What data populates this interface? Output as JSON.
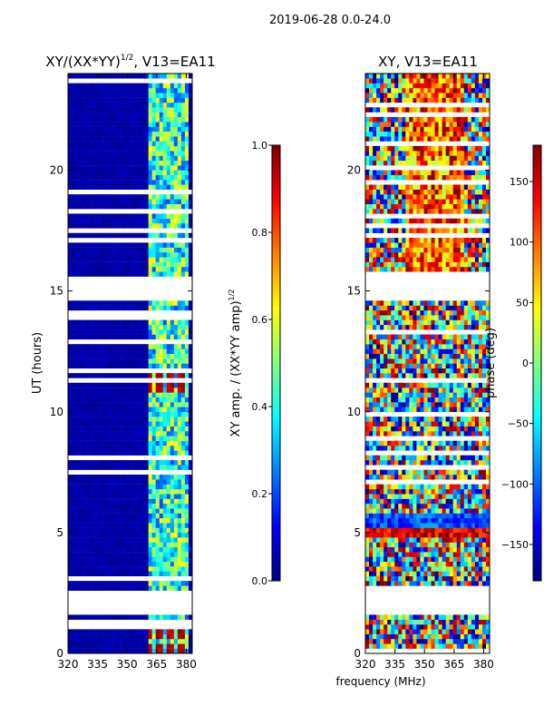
{
  "suptitle": "2019-06-28 0.0-24.0",
  "xlabel_shared": "frequency (MHz)",
  "colors": {
    "jet": [
      "#00007f",
      "#0000ff",
      "#007fff",
      "#00ffff",
      "#7fff7f",
      "#ffff00",
      "#ff7f00",
      "#ff0000",
      "#7f0000"
    ],
    "frame": "#000000",
    "background": "#ffffff"
  },
  "chart_data": [
    {
      "type": "heatmap",
      "title": "XY/(XX*YY)",
      "title_exponent": "1/2",
      "title_suffix": ", V13=EA11",
      "xlabel": "",
      "ylabel": "UT (hours)",
      "xlim": [
        320,
        383
      ],
      "ylim": [
        0,
        24
      ],
      "xticks": [
        320,
        335,
        350,
        365,
        380
      ],
      "xtick_labels": [
        "320",
        "335",
        "350",
        "365",
        "380"
      ],
      "yticks": [
        0,
        5,
        10,
        15,
        20
      ],
      "ytick_labels": [
        "0",
        "5",
        "10",
        "15",
        "20"
      ],
      "rfi_band_mhz": [
        360,
        382
      ],
      "gap_hours": [
        [
          1.6,
          2.7
        ],
        [
          14.6,
          15.6
        ]
      ],
      "hot_rows_hours": [
        0.2,
        0.8,
        1.3,
        11.0,
        11.5
      ],
      "colorbar": {
        "label": "XY amp. / (XX*YY amp)",
        "label_exponent": "1/2",
        "range": [
          0.0,
          1.0
        ],
        "ticks": [
          0.0,
          0.2,
          0.4,
          0.6,
          0.8,
          1.0
        ],
        "tick_labels": [
          "0.0",
          "0.2",
          "0.4",
          "0.6",
          "0.8",
          "1.0"
        ]
      }
    },
    {
      "type": "heatmap",
      "title": "XY, V13=EA11",
      "xlabel": "frequency (MHz)",
      "ylabel": "",
      "xlim": [
        320,
        383
      ],
      "ylim": [
        0,
        24
      ],
      "xticks": [
        320,
        335,
        350,
        365,
        380
      ],
      "xtick_labels": [
        "320",
        "335",
        "350",
        "365",
        "380"
      ],
      "yticks": [
        0,
        5,
        10,
        15,
        20
      ],
      "ytick_labels": [
        "0",
        "5",
        "10",
        "15",
        "20"
      ],
      "gap_hours": [
        [
          1.6,
          2.7
        ],
        [
          14.6,
          15.6
        ]
      ],
      "colorbar": {
        "label": "phase (deg)",
        "range": [
          -180,
          180
        ],
        "ticks": [
          -150,
          -100,
          -50,
          0,
          50,
          100,
          150
        ],
        "tick_labels": [
          "−150",
          "−100",
          "−50",
          "0",
          "50",
          "100",
          "150"
        ]
      }
    }
  ]
}
